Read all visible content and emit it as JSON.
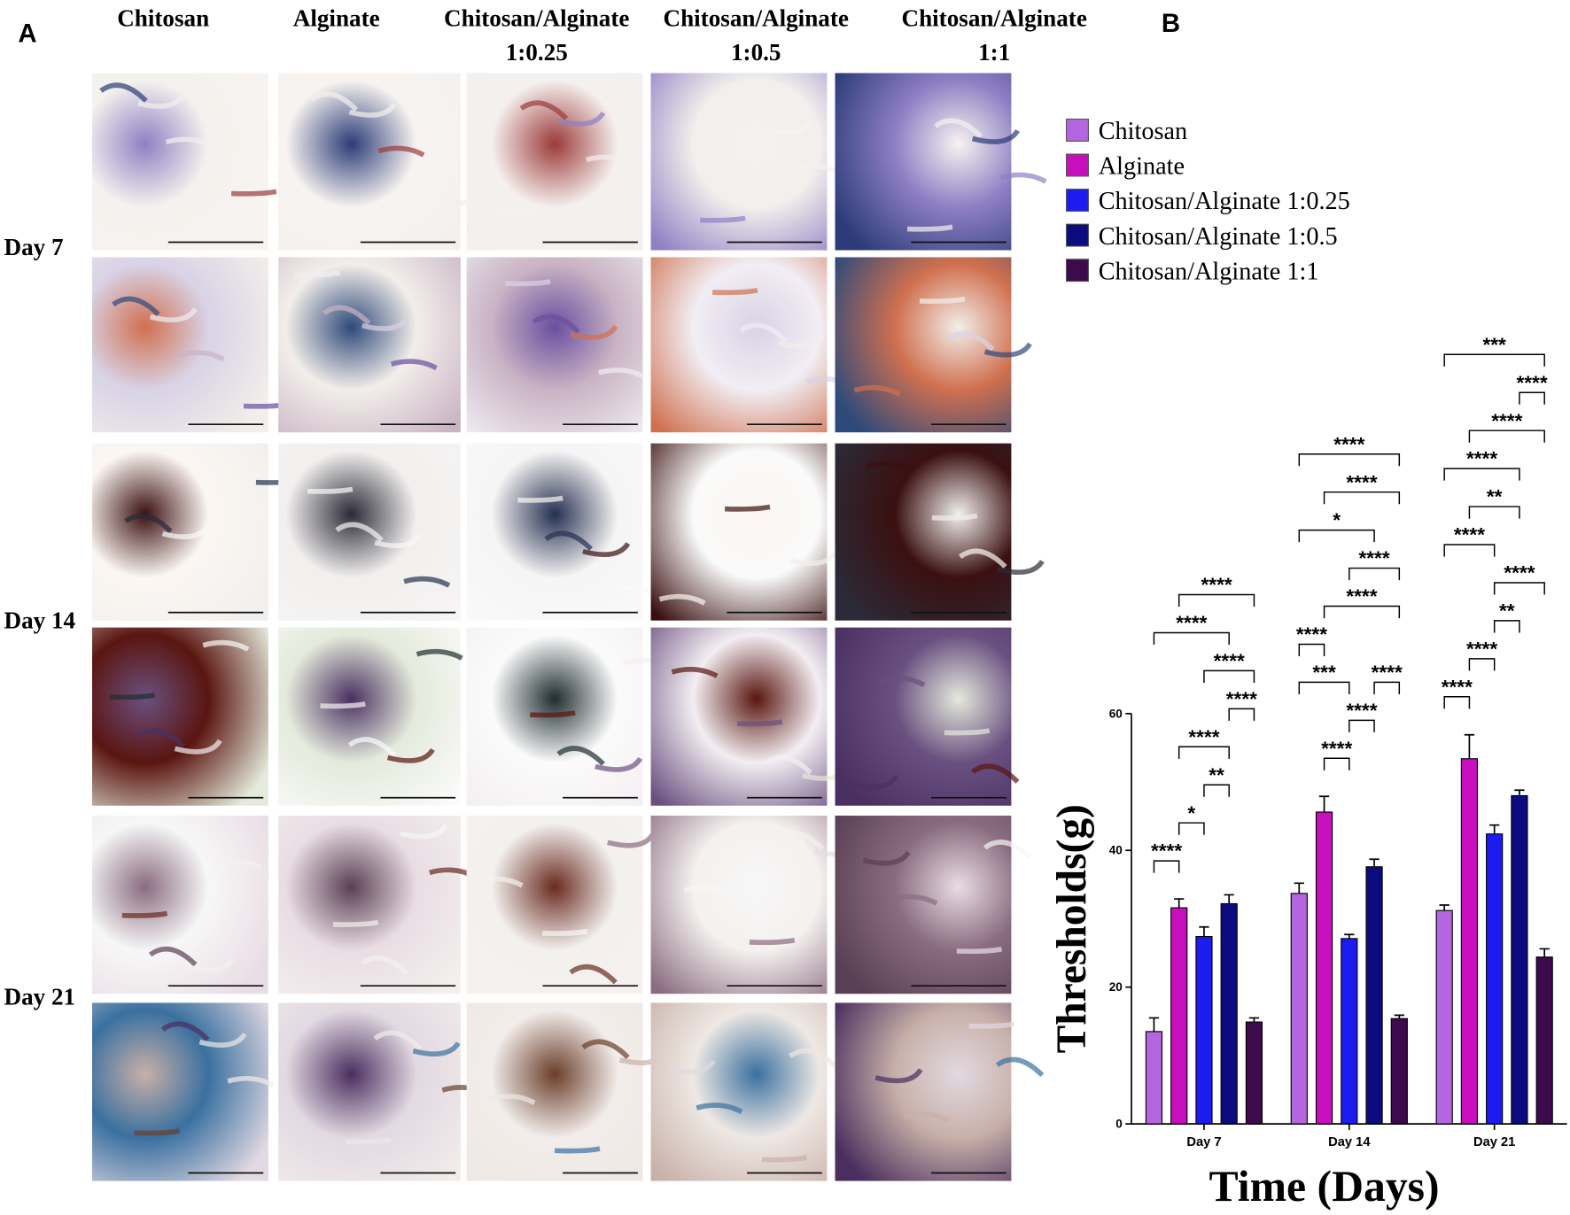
{
  "panel_a": {
    "label": "A",
    "columns": [
      [
        "Chitosan"
      ],
      [
        "Alginate"
      ],
      [
        "Chitosan/Alginate",
        "1:0.25"
      ],
      [
        "Chitosan/Alginate",
        "1:0.5"
      ],
      [
        "Chitosan/Alginate",
        "1:1"
      ]
    ],
    "rows": [
      "Day 7",
      "Day 14",
      "Day 21"
    ]
  },
  "chart_data": {
    "type": "bar",
    "panel_label": "B",
    "x_label": "Time (Days)",
    "y_label": "Thresholds(g)",
    "categories": [
      "Day 7",
      "Day 14",
      "Day 21"
    ],
    "series": [
      {
        "name": "Chitosan",
        "color": "#b366e0",
        "values": [
          13.5,
          33.7,
          31.2
        ],
        "errors": [
          2,
          1.5,
          0.8
        ]
      },
      {
        "name": "Alginate",
        "color": "#c80fbe",
        "values": [
          31.6,
          45.6,
          53.4
        ],
        "errors": [
          1.3,
          2.3,
          3.5
        ]
      },
      {
        "name": "Chitosan/Alginate 1:0.25",
        "color": "#1c1cf0",
        "values": [
          27.4,
          27.1,
          42.4
        ],
        "errors": [
          1.4,
          0.6,
          1.3
        ]
      },
      {
        "name": "Chitosan/Alginate 1:0.5",
        "color": "#0c0c80",
        "values": [
          32.2,
          37.6,
          48
        ],
        "errors": [
          1.3,
          1.1,
          0.8
        ]
      },
      {
        "name": "Chitosan/Alginate 1:1",
        "color": "#3d0a4d",
        "values": [
          14.9,
          15.4,
          24.4
        ],
        "errors": [
          0.6,
          0.5,
          1.2
        ]
      }
    ],
    "ylim": [
      0,
      60
    ],
    "yticks": [
      0,
      20,
      40,
      60
    ],
    "significance": [
      {
        "category": 0,
        "from": 0,
        "to": 1,
        "label": "****"
      },
      {
        "category": 0,
        "from": 1,
        "to": 2,
        "label": "*"
      },
      {
        "category": 0,
        "from": 2,
        "to": 3,
        "label": "**"
      },
      {
        "category": 0,
        "from": 1,
        "to": 3,
        "label": "****"
      },
      {
        "category": 0,
        "from": 3,
        "to": 4,
        "label": "****"
      },
      {
        "category": 0,
        "from": 2,
        "to": 4,
        "label": "****"
      },
      {
        "category": 0,
        "from": 0,
        "to": 3,
        "label": "****"
      },
      {
        "category": 0,
        "from": 1,
        "to": 4,
        "label": "****"
      },
      {
        "category": 1,
        "from": 1,
        "to": 2,
        "label": "****"
      },
      {
        "category": 1,
        "from": 2,
        "to": 3,
        "label": "****"
      },
      {
        "category": 1,
        "from": 3,
        "to": 4,
        "label": "****"
      },
      {
        "category": 1,
        "from": 0,
        "to": 2,
        "label": "***"
      },
      {
        "category": 1,
        "from": 0,
        "to": 1,
        "label": "****"
      },
      {
        "category": 1,
        "from": 1,
        "to": 4,
        "label": "****"
      },
      {
        "category": 1,
        "from": 2,
        "to": 4,
        "label": "****"
      },
      {
        "category": 1,
        "from": 0,
        "to": 3,
        "label": "*"
      },
      {
        "category": 1,
        "from": 1,
        "to": 4,
        "label": "****"
      },
      {
        "category": 1,
        "from": 0,
        "to": 4,
        "label": "****"
      },
      {
        "category": 2,
        "from": 0,
        "to": 1,
        "label": "****"
      },
      {
        "category": 2,
        "from": 1,
        "to": 2,
        "label": "****"
      },
      {
        "category": 2,
        "from": 2,
        "to": 3,
        "label": "**"
      },
      {
        "category": 2,
        "from": 2,
        "to": 4,
        "label": "****"
      },
      {
        "category": 2,
        "from": 0,
        "to": 2,
        "label": "****"
      },
      {
        "category": 2,
        "from": 1,
        "to": 3,
        "label": "**"
      },
      {
        "category": 2,
        "from": 0,
        "to": 3,
        "label": "****"
      },
      {
        "category": 2,
        "from": 1,
        "to": 4,
        "label": "****"
      },
      {
        "category": 2,
        "from": 3,
        "to": 4,
        "label": "****"
      },
      {
        "category": 2,
        "from": 0,
        "to": 4,
        "label": "***"
      }
    ]
  }
}
